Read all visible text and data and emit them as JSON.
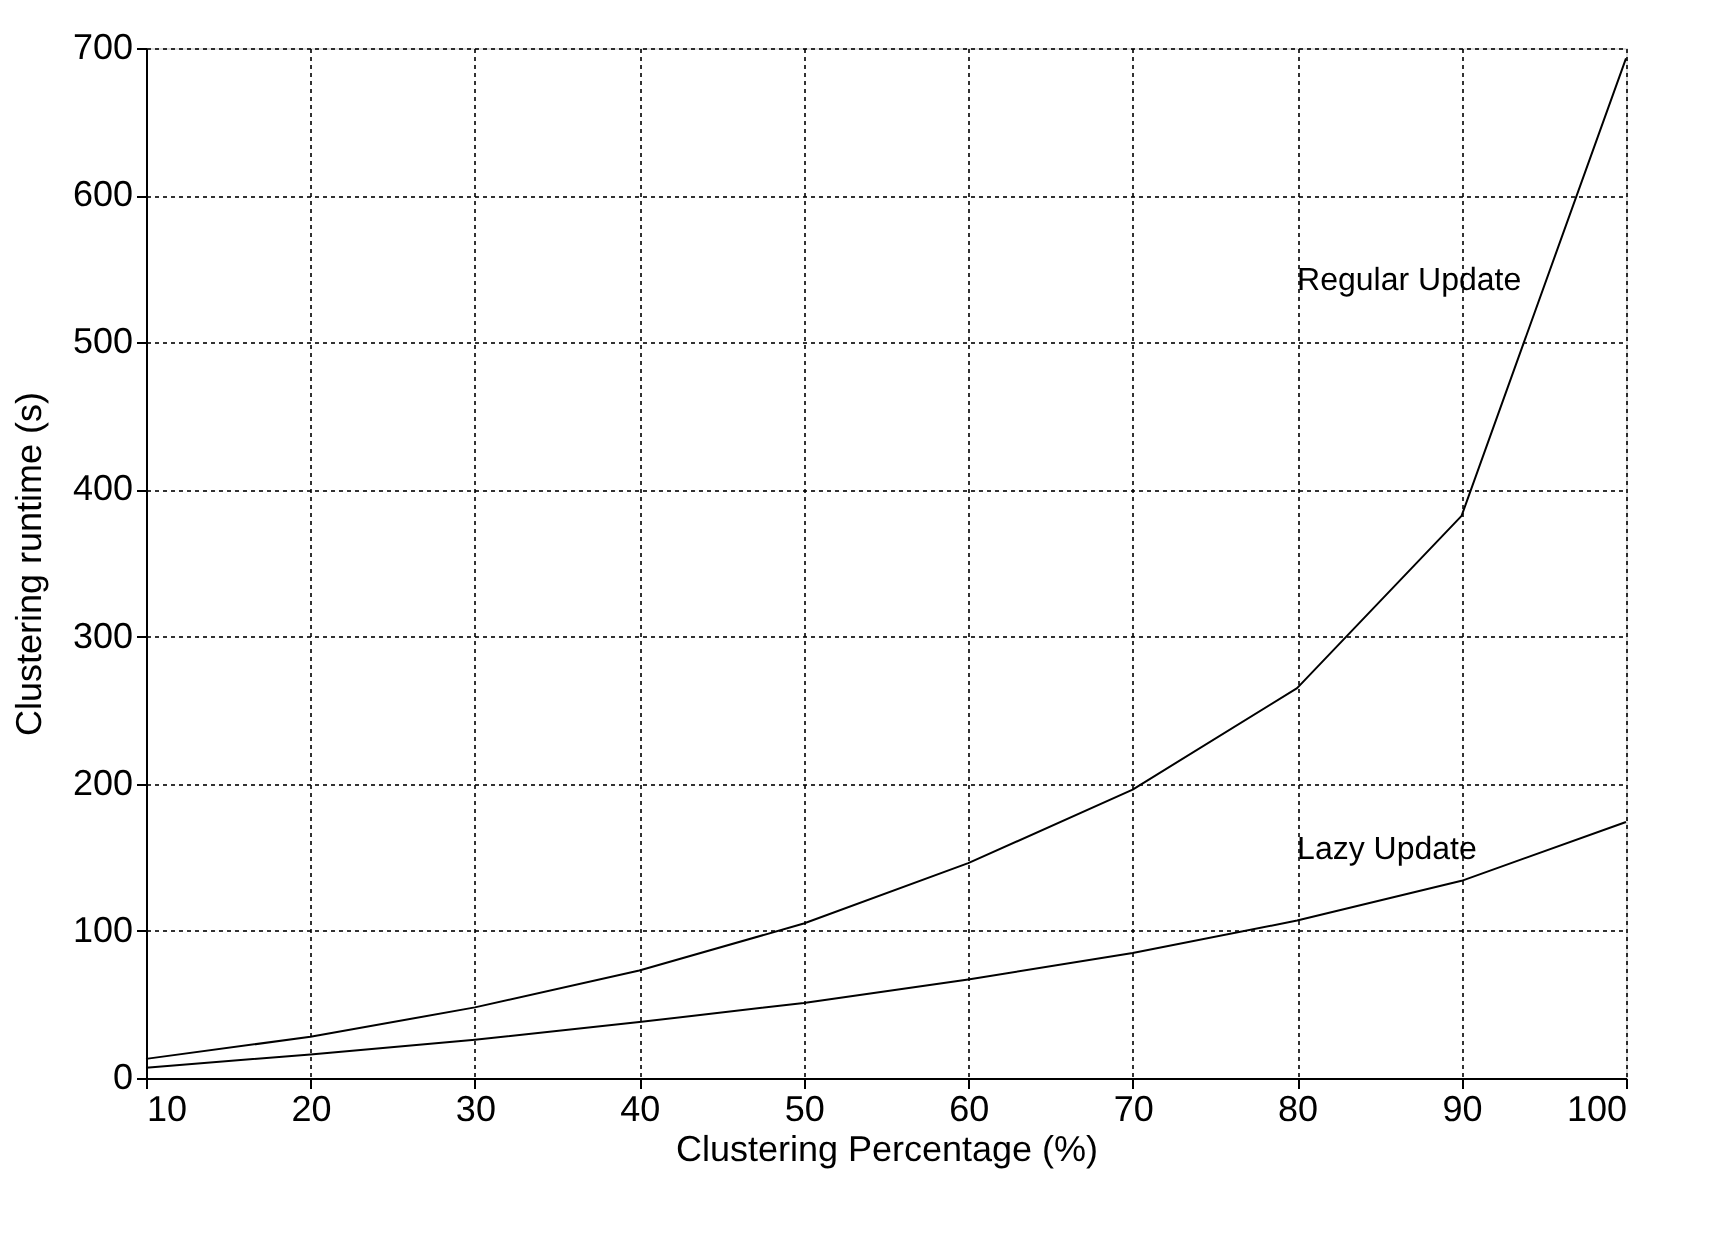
{
  "chart_data": {
    "type": "line",
    "xlabel": "Clustering Percentage (%)",
    "ylabel": "Clustering runtime (s)",
    "x": [
      10,
      20,
      30,
      40,
      50,
      60,
      70,
      80,
      90,
      100
    ],
    "series": [
      {
        "name": "Regular Update",
        "color": "#000000",
        "values": [
          13,
          28,
          48,
          73,
          105,
          146,
          196,
          265,
          382,
          693
        ]
      },
      {
        "name": "Lazy Update",
        "color": "#000000",
        "values": [
          7,
          16,
          26,
          38,
          51,
          67,
          85,
          107,
          134,
          174
        ]
      }
    ],
    "xlim": [
      10,
      100
    ],
    "xticks": [
      10,
      20,
      30,
      40,
      50,
      60,
      70,
      80,
      90,
      100
    ],
    "ylim": [
      0,
      700
    ],
    "yticks": [
      0,
      100,
      200,
      300,
      400,
      500,
      600,
      700
    ],
    "grid": true,
    "marker": "none",
    "line_style": "solid"
  }
}
